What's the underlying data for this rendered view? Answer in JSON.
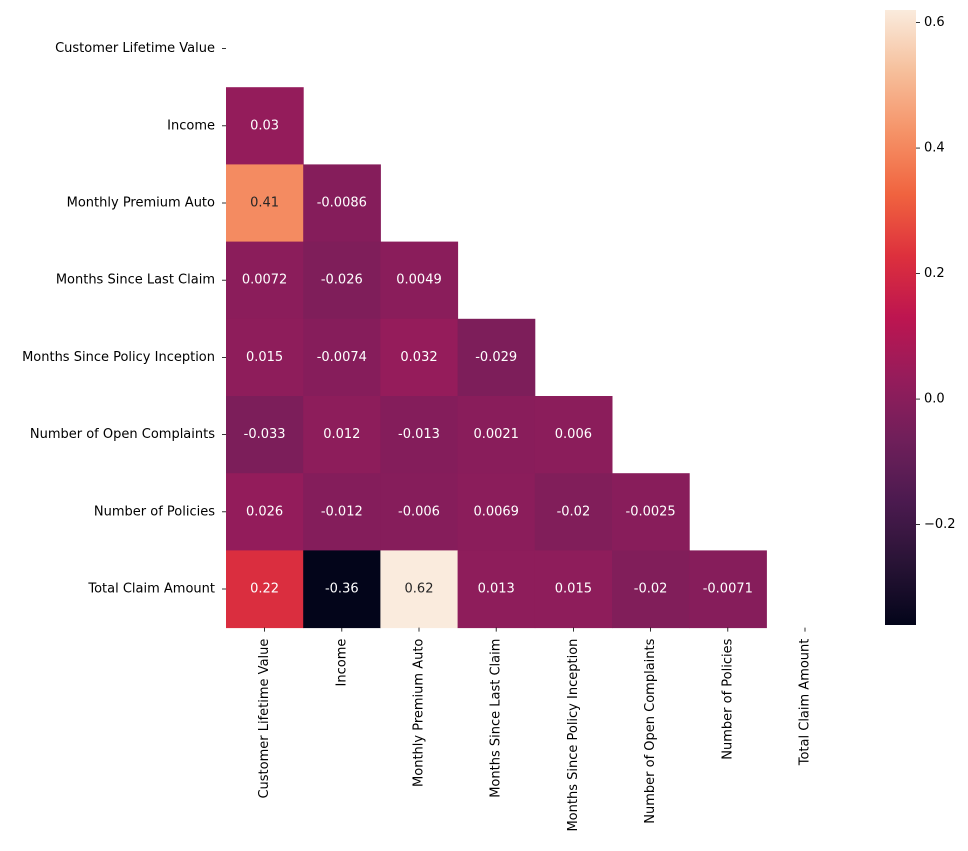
{
  "chart_data": {
    "type": "heatmap",
    "title": "",
    "xlabel": "",
    "ylabel": "",
    "masked": "upper-triangle-and-diagonal",
    "variables": [
      "Customer Lifetime Value",
      "Income",
      "Monthly Premium Auto",
      "Months Since Last Claim",
      "Months Since Policy Inception",
      "Number of Open Complaints",
      "Number of Policies",
      "Total Claim Amount"
    ],
    "matrix": [
      [
        null,
        null,
        null,
        null,
        null,
        null,
        null,
        null
      ],
      [
        0.03,
        null,
        null,
        null,
        null,
        null,
        null,
        null
      ],
      [
        0.41,
        -0.0086,
        null,
        null,
        null,
        null,
        null,
        null
      ],
      [
        0.0072,
        -0.026,
        0.0049,
        null,
        null,
        null,
        null,
        null
      ],
      [
        0.015,
        -0.0074,
        0.032,
        -0.029,
        null,
        null,
        null,
        null
      ],
      [
        -0.033,
        0.012,
        -0.013,
        0.0021,
        0.006,
        null,
        null,
        null
      ],
      [
        0.026,
        -0.012,
        -0.006,
        0.0069,
        -0.02,
        -0.0025,
        null,
        null
      ],
      [
        0.22,
        -0.36,
        0.62,
        0.013,
        0.015,
        -0.02,
        -0.0071,
        null
      ]
    ],
    "labels": [
      [
        null,
        null,
        null,
        null,
        null,
        null,
        null,
        null
      ],
      [
        "0.03",
        null,
        null,
        null,
        null,
        null,
        null,
        null
      ],
      [
        "0.41",
        "-0.0086",
        null,
        null,
        null,
        null,
        null,
        null
      ],
      [
        "0.0072",
        "-0.026",
        "0.0049",
        null,
        null,
        null,
        null,
        null
      ],
      [
        "0.015",
        "-0.0074",
        "0.032",
        "-0.029",
        null,
        null,
        null,
        null
      ],
      [
        "-0.033",
        "0.012",
        "-0.013",
        "0.0021",
        "0.006",
        null,
        null,
        null
      ],
      [
        "0.026",
        "-0.012",
        "-0.006",
        "0.0069",
        "-0.02",
        "-0.0025",
        null,
        null
      ],
      [
        "0.22",
        "-0.36",
        "0.62",
        "0.013",
        "0.015",
        "-0.02",
        "-0.0071",
        null
      ]
    ],
    "colorbar": {
      "range": [
        -0.36,
        0.62
      ],
      "ticks": [
        -0.2,
        0.0,
        0.2,
        0.4,
        0.6
      ],
      "tick_labels": [
        "−0.2",
        "0.0",
        "0.2",
        "0.4",
        "0.6"
      ],
      "colormap": "rocket"
    },
    "grid": false
  }
}
